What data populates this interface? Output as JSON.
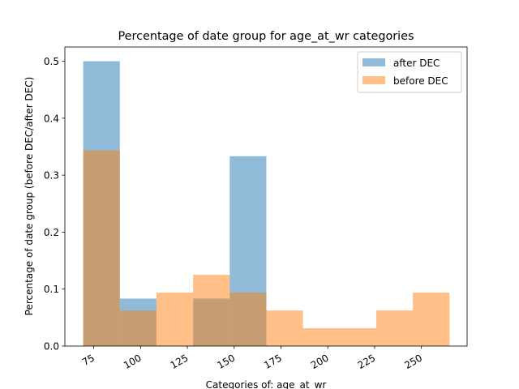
{
  "chart_data": {
    "type": "bar",
    "title": "Percentage of date group for age_at_wr categories",
    "xlabel": "Categories of: age_at_wr",
    "ylabel": "Percentage of date group (before DEC/after DEC)",
    "xlim": [
      59.6,
      274.4
    ],
    "ylim": [
      0,
      0.525
    ],
    "xticks": [
      {
        "value": 75,
        "label": "75"
      },
      {
        "value": 100,
        "label": "100"
      },
      {
        "value": 125,
        "label": "125"
      },
      {
        "value": 150,
        "label": "150"
      },
      {
        "value": 175,
        "label": "175"
      },
      {
        "value": 200,
        "label": "200"
      },
      {
        "value": 225,
        "label": "225"
      },
      {
        "value": 250,
        "label": "250"
      }
    ],
    "yticks": [
      {
        "value": 0.0,
        "label": "0.0"
      },
      {
        "value": 0.1,
        "label": "0.1"
      },
      {
        "value": 0.2,
        "label": "0.2"
      },
      {
        "value": 0.3,
        "label": "0.3"
      },
      {
        "value": 0.4,
        "label": "0.4"
      },
      {
        "value": 0.5,
        "label": "0.5"
      }
    ],
    "bin_edges": [
      69.4,
      88.96,
      108.52,
      128.08,
      147.64,
      167.2,
      186.76,
      206.32,
      225.88,
      245.44,
      265.0
    ],
    "series": [
      {
        "name": "after DEC",
        "color": "#1f77b4",
        "opacity": 0.5,
        "values": [
          0.5,
          0.0833,
          0.0,
          0.0833,
          0.3333,
          0.0,
          0.0,
          0.0,
          0.0,
          0.0
        ]
      },
      {
        "name": "before DEC",
        "color": "#ff7f0e",
        "opacity": 0.5,
        "values": [
          0.3438,
          0.0625,
          0.0938,
          0.125,
          0.0938,
          0.0625,
          0.0313,
          0.0313,
          0.0625,
          0.0938
        ]
      }
    ],
    "legend_position": "top-right",
    "grid": false
  }
}
